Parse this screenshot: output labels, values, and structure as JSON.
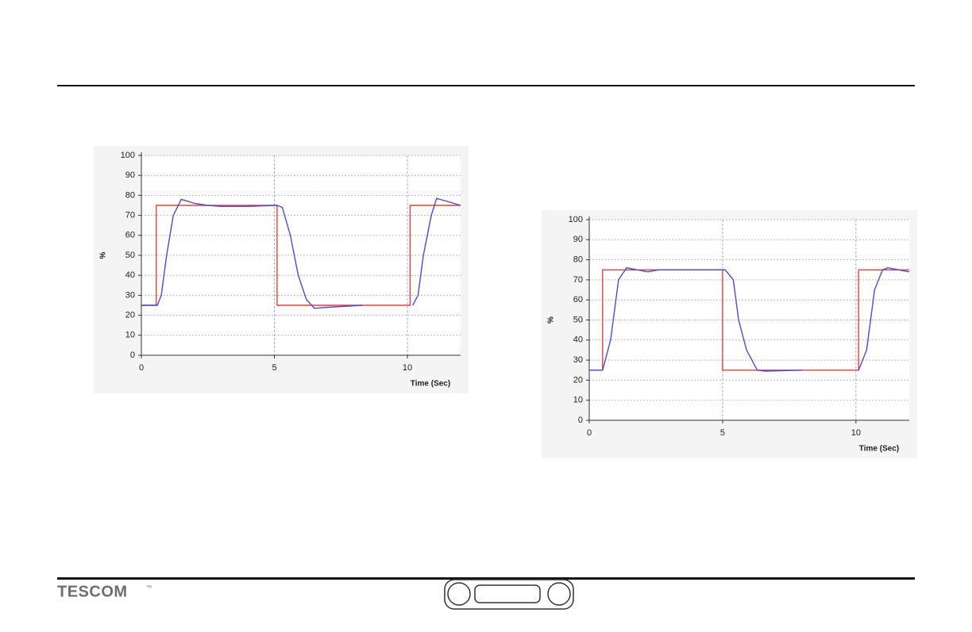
{
  "chart_data": [
    {
      "type": "line",
      "ylabel": "%",
      "xlabel": "Time (Sec)",
      "xlim": [
        0,
        12
      ],
      "xticks": [
        0,
        5,
        10
      ],
      "ylim": [
        0,
        100
      ],
      "yticks": [
        0,
        10,
        20,
        30,
        40,
        50,
        60,
        70,
        80,
        90,
        100
      ],
      "grid": true,
      "series": [
        {
          "color": "#e8403a",
          "x": [
            0,
            0.56,
            0.56,
            5.1,
            5.1,
            10.1,
            10.1,
            12
          ],
          "values": [
            25,
            25,
            75,
            75,
            25,
            25,
            75,
            75
          ]
        },
        {
          "color": "#4a4ae0",
          "x": [
            0,
            0.6,
            0.75,
            0.95,
            1.2,
            1.5,
            2,
            2.5,
            3,
            4,
            5.1,
            5.3,
            5.6,
            5.9,
            6.2,
            6.5,
            7,
            8.3,
            9.2,
            10.2,
            10.4,
            10.6,
            10.9,
            11.1,
            11.5,
            12
          ],
          "values": [
            25,
            25,
            30,
            50,
            70,
            78,
            76,
            75,
            74.5,
            74.5,
            75,
            74,
            60,
            40,
            28,
            23.5,
            24,
            25,
            null,
            25,
            30,
            50,
            70,
            78.5,
            77,
            75
          ]
        }
      ]
    },
    {
      "type": "line",
      "ylabel": "%",
      "xlabel": "Time (Sec)",
      "xlim": [
        0,
        12
      ],
      "xticks": [
        0,
        5,
        10
      ],
      "ylim": [
        0,
        100
      ],
      "yticks": [
        0,
        10,
        20,
        30,
        40,
        50,
        60,
        70,
        80,
        90,
        100
      ],
      "grid": true,
      "series": [
        {
          "color": "#e8403a",
          "x": [
            0,
            0.5,
            0.5,
            5.0,
            5.0,
            10.1,
            10.1,
            12
          ],
          "values": [
            25,
            25,
            75,
            75,
            25,
            25,
            75,
            75
          ]
        },
        {
          "color": "#4a4ae0",
          "x": [
            0,
            0.5,
            0.8,
            1.1,
            1.4,
            1.8,
            2.2,
            2.6,
            5.1,
            5.4,
            5.6,
            5.9,
            6.3,
            6.6,
            8.0,
            9.0,
            10.1,
            10.4,
            10.7,
            11.0,
            11.2,
            12
          ],
          "values": [
            25,
            25,
            40,
            70,
            76,
            75,
            74,
            75,
            75,
            70,
            50,
            35,
            25,
            24.5,
            25,
            null,
            25,
            35,
            65,
            75,
            76,
            74
          ]
        }
      ]
    }
  ],
  "footer": {
    "brand": "TESCOM",
    "trademark": "™"
  }
}
